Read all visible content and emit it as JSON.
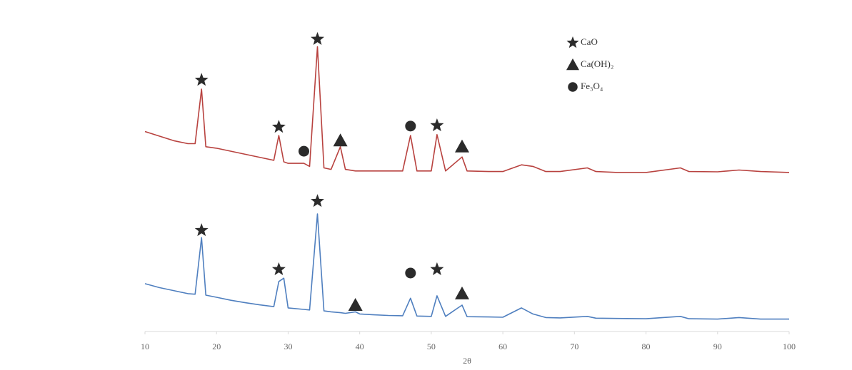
{
  "chart_data": {
    "type": "line",
    "x_label": "2θ",
    "x": [
      10,
      12,
      14,
      16,
      17,
      17.9,
      18.5,
      20,
      22,
      24,
      26,
      28,
      28.7,
      29.4,
      30,
      32.2,
      33,
      34.1,
      35,
      36,
      37.3,
      38,
      39.4,
      40,
      42,
      44,
      46,
      47.1,
      48,
      50,
      50.8,
      52,
      54.3,
      55,
      58,
      60,
      62.6,
      64.2,
      66,
      68,
      71.8,
      73,
      76,
      80,
      84.8,
      86,
      90,
      93,
      96,
      100
    ],
    "series": [
      {
        "color": "#b8423f",
        "values": [
          66,
          64.5,
          63,
          62,
          62,
          80,
          61,
          60.5,
          59.5,
          58.5,
          57.5,
          56.5,
          64.7,
          56,
          55.5,
          55.5,
          54.5,
          94,
          54,
          53.5,
          61,
          53.5,
          53,
          53,
          53,
          53,
          53,
          64.7,
          53,
          53,
          65,
          53,
          57.6,
          53,
          52.8,
          52.8,
          55,
          54.5,
          52.8,
          52.8,
          54,
          52.8,
          52.5,
          52.5,
          54,
          52.8,
          52.7,
          53.3,
          52.8,
          52.5
        ]
      },
      {
        "color": "#4f7fbf",
        "values": [
          15.8,
          14.5,
          13.5,
          12.5,
          12.3,
          31,
          12,
          11.3,
          10.3,
          9.5,
          8.8,
          8.2,
          16.5,
          17.6,
          7.8,
          7.3,
          7.1,
          38.8,
          6.8,
          6.5,
          6.2,
          6,
          6.5,
          5.8,
          5.5,
          5.3,
          5.2,
          11,
          5.1,
          5,
          11.8,
          5,
          8.7,
          4.9,
          4.8,
          4.7,
          7.8,
          5.8,
          4.6,
          4.5,
          5,
          4.4,
          4.3,
          4.2,
          5,
          4.2,
          4.1,
          4.6,
          4.1,
          4.1
        ]
      }
    ],
    "legend": [
      {
        "name": "CaO",
        "marker": "star"
      },
      {
        "name": "Ca(OH)₂",
        "marker": "triangle"
      },
      {
        "name": "Fe₃O₄",
        "marker": "circle"
      }
    ],
    "annotations": [
      {
        "x": 17.9,
        "y": 83,
        "marker": "star"
      },
      {
        "x": 28.7,
        "y": 67.5,
        "marker": "star"
      },
      {
        "x": 32.2,
        "y": 59.5,
        "marker": "circle"
      },
      {
        "x": 34.1,
        "y": 96.5,
        "marker": "star"
      },
      {
        "x": 37.3,
        "y": 63,
        "marker": "triangle"
      },
      {
        "x": 47.1,
        "y": 67.8,
        "marker": "circle"
      },
      {
        "x": 50.8,
        "y": 68,
        "marker": "star"
      },
      {
        "x": 54.3,
        "y": 61,
        "marker": "triangle"
      },
      {
        "x": 17.9,
        "y": 33.4,
        "marker": "star"
      },
      {
        "x": 28.7,
        "y": 20.5,
        "marker": "star"
      },
      {
        "x": 34.1,
        "y": 43,
        "marker": "star"
      },
      {
        "x": 39.4,
        "y": 8.7,
        "marker": "triangle"
      },
      {
        "x": 47.1,
        "y": 19.3,
        "marker": "circle"
      },
      {
        "x": 50.8,
        "y": 20.5,
        "marker": "star"
      },
      {
        "x": 54.3,
        "y": 12.5,
        "marker": "triangle"
      }
    ],
    "xlim": [
      10,
      100
    ],
    "xticks": [
      10,
      20,
      30,
      40,
      50,
      60,
      70,
      80,
      90,
      100
    ],
    "ylim": [
      0,
      100
    ]
  }
}
